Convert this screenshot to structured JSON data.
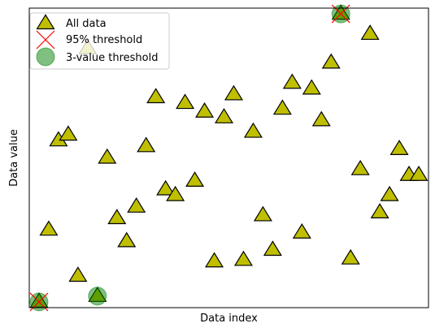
{
  "chart_data": {
    "type": "scatter",
    "title": "",
    "xlabel": "Data index",
    "ylabel": "Data value",
    "xticks": "none",
    "yticks": "none",
    "grid": false,
    "legend_position": "upper-left",
    "xlim": [
      -1,
      40
    ],
    "ylim": [
      -0.2,
      10.2
    ],
    "series": [
      {
        "name": "All data",
        "marker": "triangle",
        "color": "#bfbf00",
        "edge_color": "#000000",
        "points": [
          {
            "x": 0,
            "y": 0.0
          },
          {
            "x": 1,
            "y": 2.5
          },
          {
            "x": 2,
            "y": 5.6
          },
          {
            "x": 3,
            "y": 5.8
          },
          {
            "x": 4,
            "y": 0.9
          },
          {
            "x": 5,
            "y": 8.8
          },
          {
            "x": 6,
            "y": 0.2
          },
          {
            "x": 7,
            "y": 5.0
          },
          {
            "x": 8,
            "y": 2.9
          },
          {
            "x": 9,
            "y": 2.1
          },
          {
            "x": 10,
            "y": 3.3
          },
          {
            "x": 11,
            "y": 5.4
          },
          {
            "x": 12,
            "y": 7.1
          },
          {
            "x": 13,
            "y": 3.9
          },
          {
            "x": 14,
            "y": 3.7
          },
          {
            "x": 15,
            "y": 6.9
          },
          {
            "x": 16,
            "y": 4.2
          },
          {
            "x": 17,
            "y": 6.6
          },
          {
            "x": 18,
            "y": 1.4
          },
          {
            "x": 19,
            "y": 6.4
          },
          {
            "x": 20,
            "y": 7.2
          },
          {
            "x": 21,
            "y": 1.45
          },
          {
            "x": 22,
            "y": 5.9
          },
          {
            "x": 23,
            "y": 3.0
          },
          {
            "x": 24,
            "y": 1.8
          },
          {
            "x": 25,
            "y": 6.7
          },
          {
            "x": 26,
            "y": 7.6
          },
          {
            "x": 27,
            "y": 2.4
          },
          {
            "x": 28,
            "y": 7.4
          },
          {
            "x": 29,
            "y": 6.3
          },
          {
            "x": 30,
            "y": 8.3
          },
          {
            "x": 31,
            "y": 10.0
          },
          {
            "x": 32,
            "y": 1.5
          },
          {
            "x": 33,
            "y": 4.6
          },
          {
            "x": 34,
            "y": 9.3
          },
          {
            "x": 35,
            "y": 3.1
          },
          {
            "x": 36,
            "y": 3.7
          },
          {
            "x": 37,
            "y": 5.3
          },
          {
            "x": 38,
            "y": 4.4
          },
          {
            "x": 39,
            "y": 4.4
          }
        ]
      },
      {
        "name": "95% threshold",
        "marker": "x",
        "color": "#ff0000",
        "points": [
          {
            "x": 0,
            "y": 0.0
          },
          {
            "x": 31,
            "y": 10.0
          }
        ]
      },
      {
        "name": "3-value threshold",
        "marker": "circle",
        "color": "#008000",
        "opacity": 0.5,
        "points": [
          {
            "x": 0,
            "y": 0.0
          },
          {
            "x": 6,
            "y": 0.2
          },
          {
            "x": 31,
            "y": 10.0
          }
        ]
      }
    ]
  }
}
